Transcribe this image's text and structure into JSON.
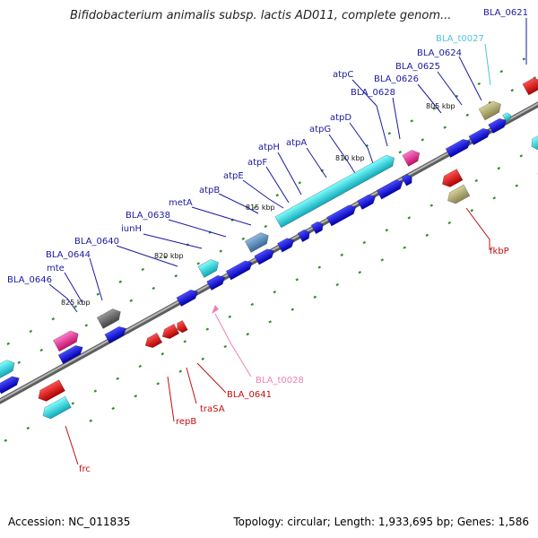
{
  "title": "Bifidobacterium animalis subsp. lactis AD011, complete genom...",
  "footer": {
    "accession": "Accession: NC_011835",
    "summary": "Topology: circular; Length: 1,933,695 bp; Genes: 1,586"
  },
  "colors": {
    "backbone": "#8c8c8c",
    "cds_forward": "#1a1ae6",
    "cds_reverse": "#e60f0f",
    "operon": "#27dcdc",
    "pseudo": "#ff3399",
    "gray_gene": "#666666",
    "khaki_gene": "#b4ad70",
    "steel_gene": "#5f8fbf",
    "tick_green": "#2f8f2f",
    "label_blue": "#1a1aa0",
    "label_red": "#c01010",
    "label_cyan": "#4fc3e0",
    "label_pink": "#f080b0"
  },
  "scale_labels": [
    "805 kbp",
    "810 kbp",
    "815 kbp",
    "820 kbp",
    "825 kbp"
  ],
  "labels_top": [
    "BLA_0621",
    "BLA_t0027",
    "BLA_0624",
    "BLA_0625",
    "BLA_0626",
    "atpC",
    "BLA_0628",
    "atpD",
    "atpG",
    "atpA",
    "atpH",
    "atpF",
    "atpE",
    "atpB",
    "metA",
    "BLA_0638",
    "iunH",
    "BLA_0640",
    "BLA_0644",
    "mte",
    "BLA_0646"
  ],
  "labels_bottom": [
    "fkbP",
    "BLA_t0028",
    "BLA_0641",
    "traSA",
    "repB",
    "frc"
  ]
}
